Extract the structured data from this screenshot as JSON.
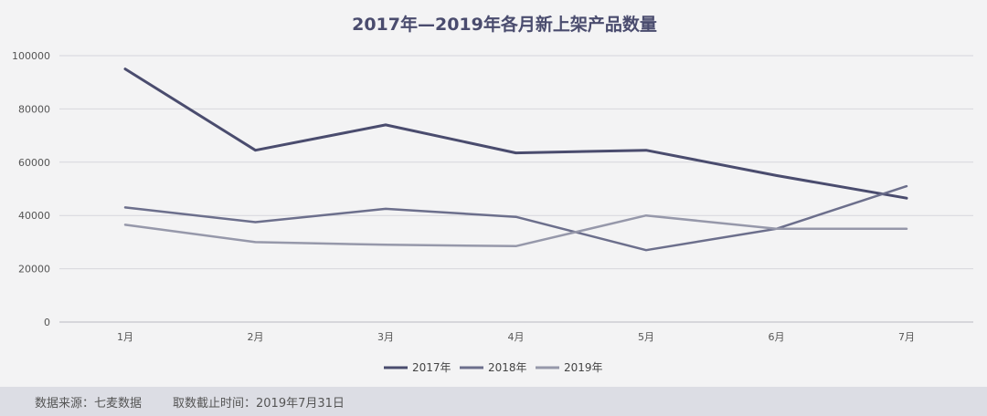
{
  "chart_data": {
    "type": "line",
    "title": "2017年—2019年各月新上架产品数量",
    "categories": [
      "1月",
      "2月",
      "3月",
      "4月",
      "5月",
      "6月",
      "7月"
    ],
    "yticks": [
      "0",
      "20000",
      "40000",
      "60000",
      "80000",
      "100000"
    ],
    "ylim": [
      0,
      100000
    ],
    "grid": true,
    "legend": "bottom",
    "series": [
      {
        "name": "2017年",
        "color": "#4a4c6e",
        "width": 3,
        "values": [
          95000,
          64500,
          74000,
          63500,
          64500,
          55000,
          46500
        ]
      },
      {
        "name": "2018年",
        "color": "#6c6f8c",
        "width": 2.5,
        "values": [
          43000,
          37500,
          42500,
          39500,
          27000,
          35000,
          51000
        ]
      },
      {
        "name": "2019年",
        "color": "#9698aa",
        "width": 2.5,
        "values": [
          36500,
          30000,
          29000,
          28500,
          40000,
          35000,
          35000
        ]
      }
    ]
  },
  "footer": {
    "source": "数据来源：七麦数据",
    "date": "取数截止时间：2019年7月31日"
  }
}
